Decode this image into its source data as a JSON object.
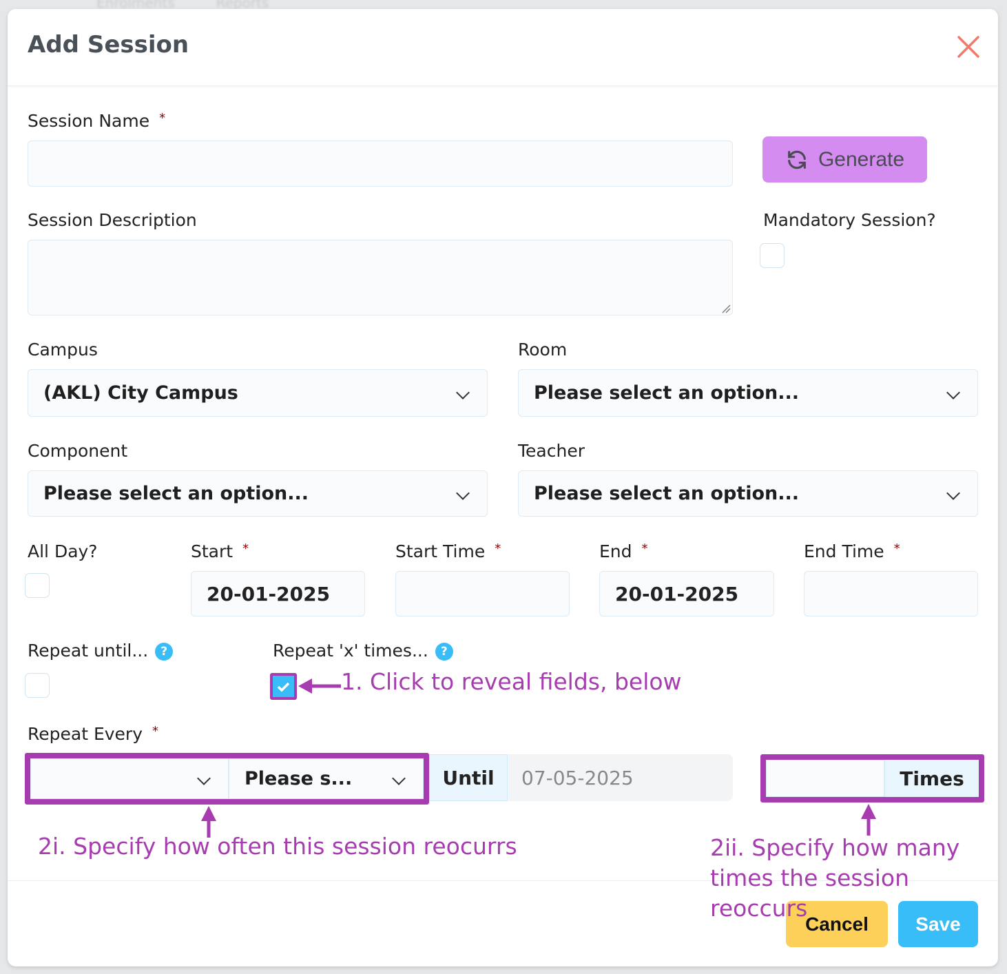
{
  "background_nav": [
    "Enrolments",
    "Reports"
  ],
  "modal": {
    "title": "Add Session",
    "close_icon": "close-x-icon",
    "close_color": "#f07b6b"
  },
  "fields": {
    "session_name": {
      "label": "Session Name",
      "value": ""
    },
    "generate_button": "Generate",
    "session_description": {
      "label": "Session Description",
      "value": ""
    },
    "mandatory": {
      "label": "Mandatory Session?",
      "checked": false
    },
    "campus": {
      "label": "Campus",
      "value": "(AKL) City Campus"
    },
    "room": {
      "label": "Room",
      "value": "Please select an option..."
    },
    "component": {
      "label": "Component",
      "value": "Please select an option..."
    },
    "teacher": {
      "label": "Teacher",
      "value": "Please select an option..."
    },
    "all_day": {
      "label": "All Day?",
      "checked": false
    },
    "start": {
      "label": "Start",
      "value": "20-01-2025"
    },
    "start_time": {
      "label": "Start Time",
      "value": ""
    },
    "end": {
      "label": "End",
      "value": "20-01-2025"
    },
    "end_time": {
      "label": "End Time",
      "value": ""
    },
    "repeat_until": {
      "label": "Repeat until...",
      "checked": false
    },
    "repeat_times": {
      "label": "Repeat 'x' times...",
      "checked": true
    },
    "repeat_every": {
      "label": "Repeat Every",
      "interval_value": "",
      "unit_value": "Please s..."
    },
    "until": {
      "label": "Until",
      "value": "07-05-2025"
    },
    "times": {
      "value": "",
      "label": "Times"
    }
  },
  "annotations": {
    "a1": "1. Click to reveal fields, below",
    "a2i": "2i. Specify how often this session reocurrs",
    "a2ii_line1": "2ii. Specify how many",
    "a2ii_line2": "times the session reoccurs",
    "color": "#a63cb0"
  },
  "footer": {
    "cancel": "Cancel",
    "save": "Save",
    "cancel_color": "#fdd05a",
    "save_color": "#38bdf8"
  },
  "colors": {
    "generate": "#d58cf0"
  }
}
